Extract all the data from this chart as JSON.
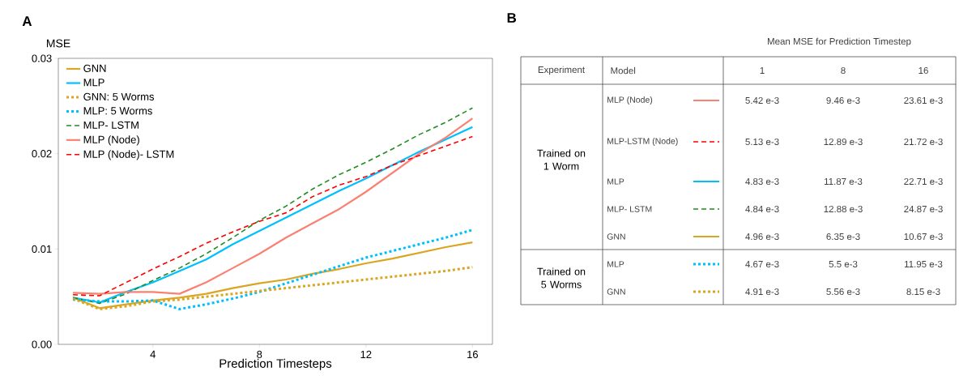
{
  "chart_data": [
    {
      "type": "line",
      "ylabel": "MSE",
      "xlabel": "Prediction Timesteps",
      "annotations": [
        "A"
      ],
      "x": [
        1,
        2,
        3,
        4,
        5,
        6,
        7,
        8,
        9,
        10,
        11,
        12,
        13,
        14,
        15,
        16
      ],
      "xlim": [
        0.45,
        16.75
      ],
      "xticks": [
        4,
        8,
        12,
        16
      ],
      "ylim": [
        0,
        0.03
      ],
      "yticks": [
        {
          "value": 0,
          "label": "0.00"
        },
        {
          "value": 0.01,
          "label": "0.01"
        },
        {
          "value": 0.02,
          "label": "0.02"
        },
        {
          "value": 0.03,
          "label": "0.03"
        }
      ],
      "legend": "top left",
      "series": [
        {
          "name": "GNN",
          "color": "#daa520",
          "line_style": "solid",
          "values": [
            0.0049,
            0.0038,
            0.0042,
            0.0046,
            0.0049,
            0.0053,
            0.0059,
            0.0064,
            0.0068,
            0.0074,
            0.0079,
            0.0085,
            0.009,
            0.0096,
            0.0102,
            0.0107
          ]
        },
        {
          "name": "MLP",
          "color": "#00bfff",
          "line_style": "solid",
          "values": [
            0.0049,
            0.0044,
            0.0055,
            0.0065,
            0.0077,
            0.0089,
            0.0105,
            0.0119,
            0.0133,
            0.0147,
            0.0161,
            0.0174,
            0.0188,
            0.0202,
            0.0215,
            0.0228
          ]
        },
        {
          "name": "GNN: 5 Worms",
          "color": "#daa520",
          "line_style": "dotted",
          "values": [
            0.0048,
            0.0037,
            0.004,
            0.0045,
            0.0047,
            0.005,
            0.0053,
            0.0056,
            0.0059,
            0.0062,
            0.0065,
            0.0068,
            0.0071,
            0.0074,
            0.0077,
            0.0081
          ]
        },
        {
          "name": "MLP: 5 Worms",
          "color": "#00bfff",
          "line_style": "dotted",
          "values": [
            0.0047,
            0.0045,
            0.0045,
            0.0046,
            0.0037,
            0.0042,
            0.0048,
            0.0055,
            0.0064,
            0.0073,
            0.0082,
            0.0091,
            0.0098,
            0.0105,
            0.0112,
            0.012
          ]
        },
        {
          "name": "MLP- LSTM",
          "color": "#228b22",
          "line_style": "dashed",
          "values": [
            0.0049,
            0.0043,
            0.0053,
            0.0067,
            0.008,
            0.0095,
            0.0112,
            0.013,
            0.0145,
            0.0163,
            0.0178,
            0.0191,
            0.0205,
            0.022,
            0.0233,
            0.0248
          ]
        },
        {
          "name": "MLP (Node)",
          "color": "#fa8072",
          "line_style": "solid",
          "values": [
            0.0054,
            0.0053,
            0.0055,
            0.0055,
            0.0053,
            0.0065,
            0.008,
            0.0095,
            0.0112,
            0.0127,
            0.0142,
            0.016,
            0.018,
            0.02,
            0.0217,
            0.0237
          ]
        },
        {
          "name": "MLP (Node)- LSTM",
          "color": "#ff0000",
          "line_style": "dashed",
          "values": [
            0.0052,
            0.0051,
            0.0065,
            0.0079,
            0.0092,
            0.0106,
            0.0118,
            0.0129,
            0.0138,
            0.0155,
            0.0167,
            0.0176,
            0.0188,
            0.0198,
            0.0208,
            0.0218
          ]
        }
      ]
    },
    {
      "type": "other",
      "title": "Mean MSE for Prediction Timestep",
      "annotations": [
        "B",
        "Experiment",
        "Model",
        "1",
        "8",
        "16",
        "Trained on 1 Worm",
        "Trained on 5 Worms",
        "MLP (Node)",
        "MLP-LSTM (Node)",
        "MLP",
        "MLP- LSTM",
        "GNN",
        "MLP",
        "GNN",
        "5.42 e-3",
        "9.46 e-3",
        "23.61 e-3",
        "5.13 e-3",
        "12.89 e-3",
        "21.72 e-3",
        "4.83 e-3",
        "11.87 e-3",
        "22.71 e-3",
        "4.84 e-3",
        "12.88 e-3",
        "24.87 e-3",
        "4.96 e-3",
        "6.35 e-3",
        "10.67 e-3",
        "4.67 e-3",
        "5.5 e-3",
        "11.95 e-3",
        "4.91 e-3",
        "5.56 e-3",
        "8.15 e-3"
      ]
    }
  ]
}
